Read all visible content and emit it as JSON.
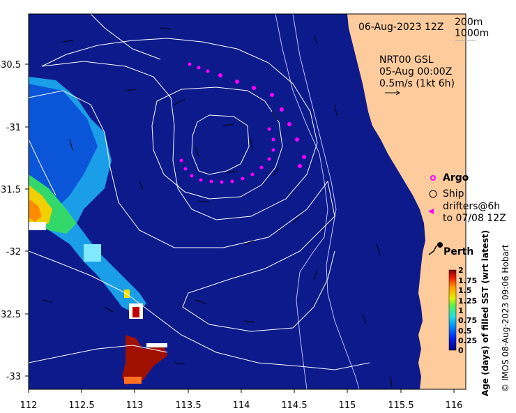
{
  "map": {
    "date_label": "06-Aug-2023 12Z",
    "isobaths": [
      "200m",
      "1000m"
    ],
    "current_info": [
      "NRT00 GSL",
      "05-Aug 00:00Z",
      "0.5m/s (1kt 6h)"
    ],
    "x_ticks": [
      "112",
      "112.5",
      "113",
      "113.5",
      "114",
      "114.5",
      "115",
      "115.5",
      "116"
    ],
    "y_ticks": [
      "-30.5",
      "-31",
      "-31.5",
      "-32",
      "-32.5",
      "-33"
    ],
    "legend": {
      "argo": "Argo",
      "ship": "Ship",
      "drifters_line1": "drifters@6h",
      "drifters_line2": "to 07/08 12Z"
    },
    "city_label": "Perth",
    "colorbar": {
      "title": "Age (days) of filled SST (wrt latest)",
      "ticks": [
        "2",
        "1.75",
        "1.5",
        "1.25",
        "1",
        "0.75",
        "0.5",
        "0.25",
        "0"
      ]
    },
    "credit": "© IMOS 08-Aug-2023 09:06 Hobart",
    "colors": {
      "ocean": "#0d1a8c",
      "land": "#fdcb9c",
      "drifters": "#ff00ff",
      "contours": "#ffffff"
    }
  }
}
